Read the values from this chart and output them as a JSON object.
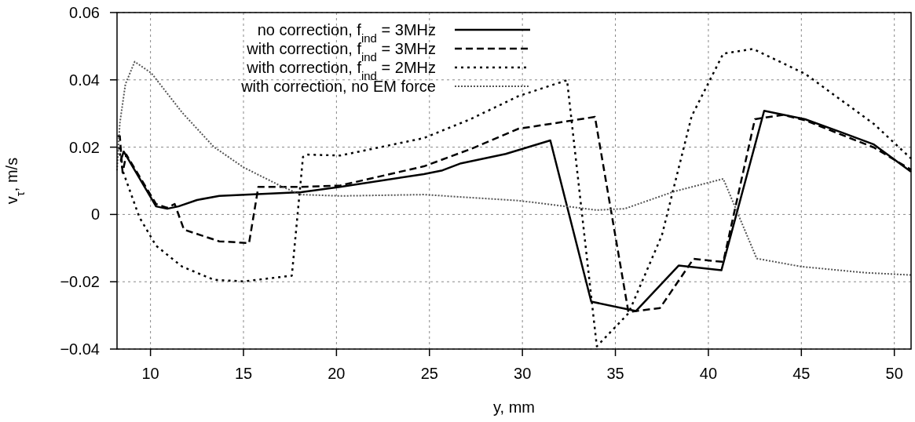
{
  "chart_data": {
    "type": "line",
    "xlabel": "y, mm",
    "ylabel": "v$_{τ}$, m/s",
    "xlim": [
      8.2,
      50.9
    ],
    "ylim": [
      -0.04,
      0.06
    ],
    "xticks": [
      10,
      15,
      20,
      25,
      30,
      35,
      40,
      45,
      50
    ],
    "yticks": [
      {
        "value": -0.04,
        "label": "−0.04"
      },
      {
        "value": -0.02,
        "label": "−0.02"
      },
      0,
      0.02,
      0.04,
      0.06
    ],
    "grid": true,
    "legend": "top",
    "series": [
      {
        "name": "no correction, f$_{ind}$ = 3MHz",
        "color": "#000000",
        "line_style": "solid",
        "x": [
          8.4,
          8.56,
          10.3,
          10.9,
          11.5,
          12.5,
          13.7,
          15.3,
          18.1,
          20.2,
          24.7,
          25.7,
          26.7,
          29.1,
          31.5,
          33.7,
          36.1,
          38.4,
          40.7,
          43.0,
          45.2,
          47.2,
          48.9,
          50.9
        ],
        "values": [
          0.016,
          0.0187,
          0.0024,
          0.0017,
          0.0024,
          0.0043,
          0.0055,
          0.0059,
          0.0066,
          0.0082,
          0.012,
          0.0131,
          0.0152,
          0.018,
          0.022,
          -0.0259,
          -0.0287,
          -0.0152,
          -0.0166,
          0.0308,
          0.0283,
          0.0243,
          0.0208,
          0.0127
        ]
      },
      {
        "name": "with correction, f$_{ind}$ = 3MHz",
        "color": "#000000",
        "line_style": "dashed",
        "x": [
          8.23,
          8.35,
          8.5,
          8.7,
          10.3,
          10.9,
          11.3,
          11.8,
          13.7,
          15.3,
          15.8,
          18.1,
          20.2,
          24.7,
          27.2,
          29.8,
          31.5,
          33.9,
          35.7,
          37.4,
          39.2,
          40.8,
          42.5,
          44.0,
          45.2,
          47.2,
          48.9,
          50.9
        ],
        "values": [
          0.0233,
          0.0233,
          0.0124,
          0.0178,
          0.0031,
          0.002,
          0.0031,
          -0.0045,
          -0.008,
          -0.0085,
          0.0082,
          0.0082,
          0.0086,
          0.0143,
          0.0194,
          0.0255,
          0.0269,
          0.029,
          -0.029,
          -0.0278,
          -0.0132,
          -0.0141,
          0.0283,
          0.0296,
          0.028,
          0.0236,
          0.0199,
          0.0133
        ]
      },
      {
        "name": "with correction, f$_{ind}$ = 2MHz",
        "color": "#000000",
        "line_style": "dotted",
        "x": [
          8.3,
          8.5,
          9.4,
          10.3,
          11.7,
          13.4,
          15.0,
          17.6,
          18.2,
          18.4,
          20.2,
          24.7,
          27.2,
          29.8,
          32.4,
          34.0,
          35.7,
          37.5,
          39.1,
          40.8,
          42.4,
          45.2,
          48.9,
          50.9
        ],
        "values": [
          0.02,
          0.0131,
          -0.0008,
          -0.0093,
          -0.0155,
          -0.0194,
          -0.0199,
          -0.0182,
          0.0171,
          0.0178,
          0.0175,
          0.0227,
          0.0283,
          0.0352,
          0.0399,
          -0.0392,
          -0.0294,
          -0.0062,
          0.0292,
          0.0478,
          0.0492,
          0.0418,
          0.0269,
          0.0166
        ]
      },
      {
        "name": "with correction, no EM force",
        "color": "#555555",
        "line_style": "dotted",
        "x": [
          8.2,
          8.35,
          8.65,
          9.15,
          10.05,
          11.7,
          13.4,
          15.0,
          17.1,
          18.1,
          20.2,
          24.7,
          29.8,
          34.0,
          35.5,
          38.2,
          40.8,
          42.6,
          45.0,
          48.4,
          50.9
        ],
        "values": [
          0.0131,
          0.0271,
          0.0387,
          0.0454,
          0.042,
          0.0303,
          0.0201,
          0.014,
          0.0082,
          0.0059,
          0.0055,
          0.0059,
          0.0041,
          0.0013,
          0.0017,
          0.0069,
          0.0106,
          -0.0131,
          -0.0155,
          -0.0173,
          -0.018
        ]
      }
    ]
  }
}
